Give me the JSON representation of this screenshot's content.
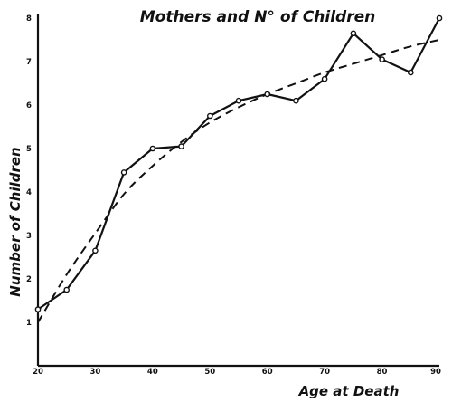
{
  "chart_data": {
    "type": "line",
    "title": "Mothers and N° of Children",
    "xlabel": "Age at Death",
    "ylabel": "Number of Children",
    "xlim": [
      20,
      90
    ],
    "ylim": [
      0,
      8
    ],
    "x_ticks": [
      20,
      30,
      40,
      50,
      60,
      70,
      80,
      90
    ],
    "y_ticks": [
      1,
      2,
      3,
      4,
      5,
      6,
      7,
      8
    ],
    "grid": false,
    "series": [
      {
        "style": "solid-with-markers",
        "x": [
          20,
          25,
          30,
          35,
          40,
          45,
          50,
          55,
          60,
          65,
          70,
          75,
          80,
          85,
          90
        ],
        "y": [
          1.3,
          1.75,
          2.65,
          4.45,
          5.0,
          5.05,
          5.75,
          6.1,
          6.25,
          6.1,
          6.6,
          7.65,
          7.05,
          6.75,
          8.0
        ]
      },
      {
        "style": "dashed-trend",
        "x": [
          20,
          25,
          30,
          35,
          40,
          45,
          50,
          55,
          60,
          65,
          70,
          75,
          80,
          85,
          90
        ],
        "y": [
          1.0,
          2.1,
          3.05,
          3.95,
          4.6,
          5.15,
          5.6,
          5.95,
          6.25,
          6.5,
          6.75,
          6.95,
          7.15,
          7.35,
          7.5
        ]
      }
    ]
  }
}
